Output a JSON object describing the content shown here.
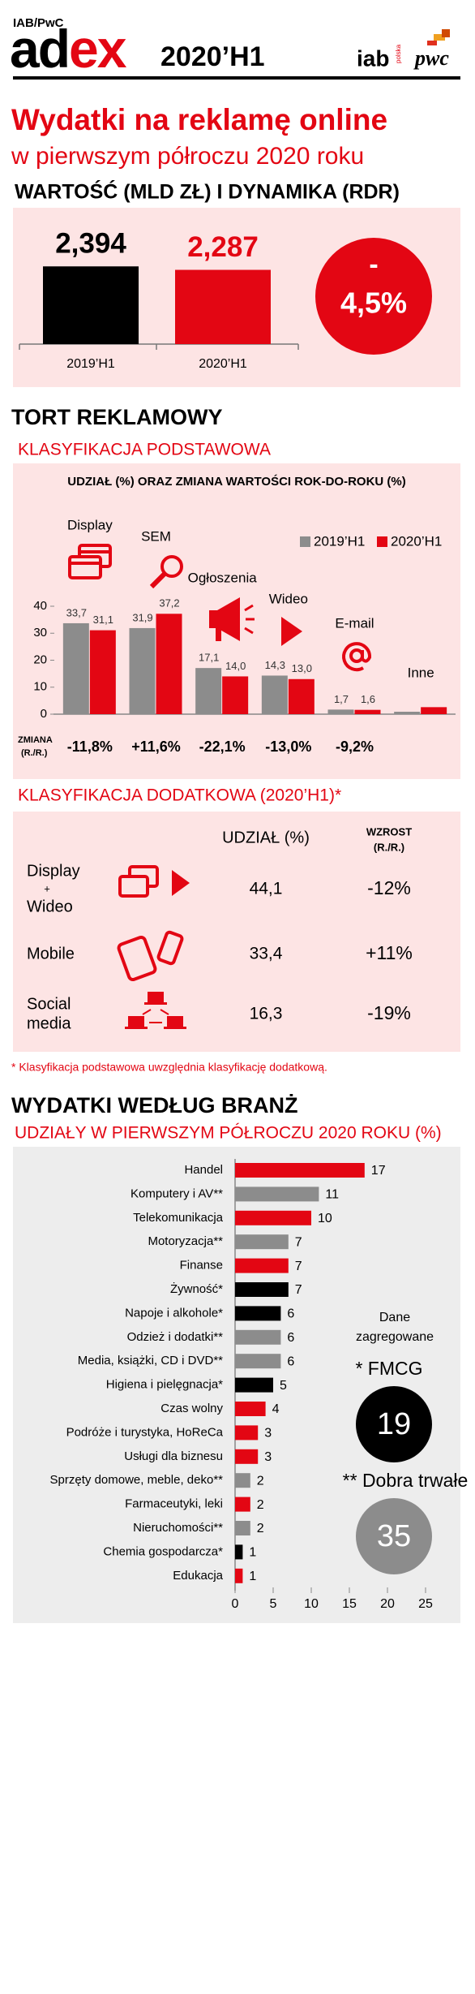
{
  "header": {
    "publisher": "IAB/PwC",
    "brand": [
      "ad",
      "ex"
    ],
    "period": "2020’H1",
    "logos": [
      "iab",
      "polska",
      "pwc"
    ]
  },
  "title": "Wydatki na reklamę online",
  "subtitle": "w pierwszym półroczu 2020 roku",
  "chart_data": [
    {
      "type": "bar",
      "title": "WARTOŚĆ (MLD ZŁ) I DYNAMIKA (RDR)",
      "categories": [
        "2019’H1",
        "2020’H1"
      ],
      "values": [
        2.394,
        2.287
      ],
      "value_labels": [
        "2,394",
        "2,287"
      ],
      "colors": [
        "#000000",
        "#e30613"
      ],
      "change_label": [
        "-",
        "4,5%"
      ]
    },
    {
      "type": "grouped_bar",
      "section": "TORT REKLAMOWY",
      "subtitle": "KLASYFIKACJA PODSTAWOWA",
      "title": "UDZIAŁ (%) ORAZ ZMIANA WARTOŚCI ROK-DO-ROKU (%)",
      "categories": [
        "Display",
        "SEM",
        "Ogłoszenia",
        "Wideo",
        "E-mail",
        "Inne"
      ],
      "series": [
        {
          "name": "2019’H1",
          "color": "#8c8c8c",
          "values": [
            33.7,
            31.9,
            17.1,
            14.3,
            1.7,
            0.9
          ],
          "value_labels": [
            "33,7",
            "31,9",
            "17,1",
            "14,3",
            "1,7",
            null
          ]
        },
        {
          "name": "2020’H1",
          "color": "#e30613",
          "values": [
            31.1,
            37.2,
            14.0,
            13.0,
            1.6,
            2.6
          ],
          "value_labels": [
            "31,1",
            "37,2",
            "14,0",
            "13,0",
            "1,6",
            null
          ]
        }
      ],
      "ylim": [
        0,
        40
      ],
      "yticks": [
        0,
        10,
        20,
        30,
        40
      ],
      "change_title": [
        "ZMIANA",
        "(R./R.)"
      ],
      "changes": [
        "-11,8%",
        "+11,6%",
        "-22,1%",
        "-13,0%",
        "-9,2%",
        null
      ]
    },
    {
      "type": "barh",
      "section": "WYDATKI WEDŁUG BRANŻ",
      "title": "UDZIAŁY W PIERWSZYM PÓŁROCZU 2020 ROKU (%)",
      "categories": [
        "Handel",
        "Komputery i AV**",
        "Telekomunikacja",
        "Motoryzacja**",
        "Finanse",
        "Żywność*",
        "Napoje i alkohole*",
        "Odzież i dodatki**",
        "Media, książki, CD i DVD**",
        "Higiena i pielęgnacja*",
        "Czas wolny",
        "Podróże i turystyka, HoReCa",
        "Usługi dla biznesu",
        "Sprzęty domowe, meble, deko**",
        "Farmaceutyki, leki",
        "Nieruchomości**",
        "Chemia gospodarcza*",
        "Edukacja"
      ],
      "values": [
        17,
        11,
        10,
        7,
        7,
        7,
        6,
        6,
        6,
        5,
        4,
        3,
        3,
        2,
        2,
        2,
        1,
        1
      ],
      "colors": [
        "#e30613",
        "#8c8c8c",
        "#e30613",
        "#8c8c8c",
        "#e30613",
        "#000000",
        "#000000",
        "#8c8c8c",
        "#8c8c8c",
        "#000000",
        "#e30613",
        "#e30613",
        "#e30613",
        "#8c8c8c",
        "#e30613",
        "#8c8c8c",
        "#000000",
        "#e30613"
      ],
      "xlim": [
        0,
        25
      ],
      "xticks": [
        0,
        5,
        10,
        15,
        20,
        25
      ],
      "aggregates": {
        "title": [
          "Dane",
          "zagregowane"
        ],
        "groups": [
          {
            "label": "* FMCG",
            "value": 19,
            "color": "#000000"
          },
          {
            "label": "** Dobra trwałe",
            "value": 35,
            "color": "#8c8c8c"
          }
        ]
      }
    }
  ],
  "additional": {
    "title": "KLASYFIKACJA DODATKOWA (2020’H1)*",
    "headers": {
      "share": "UDZIAŁ (%)",
      "growth": [
        "WZROST",
        "(R./R.)"
      ]
    },
    "rows": [
      {
        "label": [
          "Display",
          "+",
          "Wideo"
        ],
        "share": "44,1",
        "growth": "-12%"
      },
      {
        "label": [
          "Mobile"
        ],
        "share": "33,4",
        "growth": "+11%"
      },
      {
        "label": [
          "Social",
          "media"
        ],
        "share": "16,3",
        "growth": "-19%"
      }
    ],
    "footnote": "* Klasyfikacja podstawowa uwzględnia klasyfikację dodatkową."
  }
}
